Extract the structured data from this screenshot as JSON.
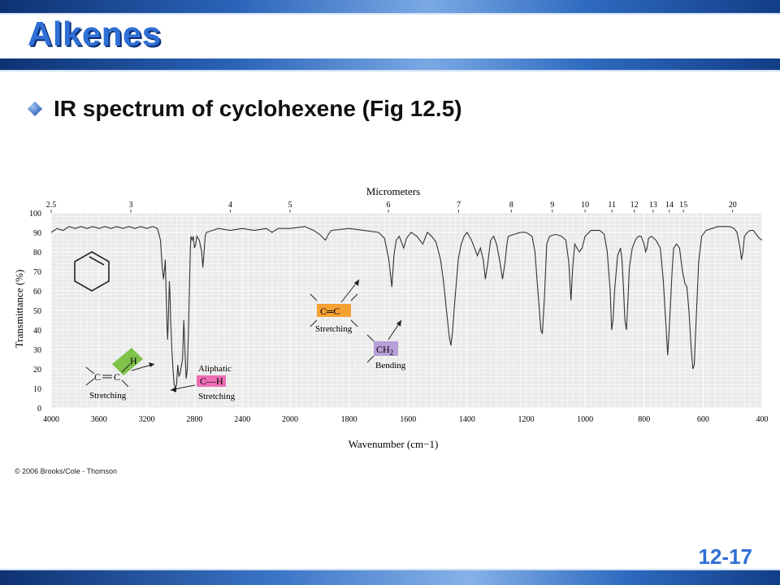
{
  "slide": {
    "title": "Alkenes",
    "bullet": "IR spectrum of cyclohexene (Fig 12.5)",
    "copyright": "© 2006 Brooks/Cole - Thomson",
    "slide_number": "12-17"
  },
  "colors": {
    "title": "#2f6fd6",
    "title_shadow": "#0b2f73",
    "band_dark": "#123d87",
    "band_light": "#6fa0e0",
    "plot_bg": "#eaeaea",
    "label_green": "#7fc24a",
    "label_orange": "#f5a033",
    "label_pink": "#ee6fb6",
    "label_purple": "#b89fd8"
  },
  "chart_data": {
    "type": "line",
    "xlabel": "Wavenumber (cm−1)",
    "ylabel": "Transmittance (%)",
    "top_axis_label": "Micrometers",
    "xlim": [
      4000,
      400
    ],
    "ylim": [
      0,
      100
    ],
    "x_ticks": [
      4000,
      3600,
      3200,
      2800,
      2400,
      2000,
      1800,
      1600,
      1400,
      1200,
      1000,
      800,
      600,
      400
    ],
    "y_ticks": [
      0,
      10,
      20,
      30,
      40,
      50,
      60,
      70,
      80,
      90,
      100
    ],
    "micrometer_ticks": [
      2.5,
      3,
      4,
      5,
      6,
      7,
      8,
      9,
      10,
      11,
      12,
      13,
      14,
      15,
      20
    ],
    "grid": true,
    "series": [
      {
        "points": [
          [
            4000,
            90
          ],
          [
            3950,
            92
          ],
          [
            3900,
            91
          ],
          [
            3850,
            93
          ],
          [
            3800,
            92
          ],
          [
            3750,
            93
          ],
          [
            3700,
            92
          ],
          [
            3650,
            93
          ],
          [
            3600,
            92
          ],
          [
            3550,
            93
          ],
          [
            3500,
            92
          ],
          [
            3450,
            93
          ],
          [
            3400,
            92
          ],
          [
            3350,
            93
          ],
          [
            3300,
            92
          ],
          [
            3250,
            93
          ],
          [
            3200,
            92
          ],
          [
            3150,
            93
          ],
          [
            3110,
            92
          ],
          [
            3085,
            86
          ],
          [
            3070,
            72
          ],
          [
            3060,
            66
          ],
          [
            3050,
            72
          ],
          [
            3045,
            76
          ],
          [
            3038,
            60
          ],
          [
            3030,
            42
          ],
          [
            3025,
            35
          ],
          [
            3020,
            44
          ],
          [
            3015,
            55
          ],
          [
            3010,
            65
          ],
          [
            3005,
            58
          ],
          [
            3000,
            45
          ],
          [
            2990,
            30
          ],
          [
            2980,
            20
          ],
          [
            2970,
            12
          ],
          [
            2960,
            10
          ],
          [
            2950,
            12
          ],
          [
            2940,
            22
          ],
          [
            2930,
            16
          ],
          [
            2920,
            18
          ],
          [
            2900,
            25
          ],
          [
            2890,
            45
          ],
          [
            2880,
            30
          ],
          [
            2870,
            15
          ],
          [
            2860,
            20
          ],
          [
            2850,
            40
          ],
          [
            2840,
            68
          ],
          [
            2835,
            82
          ],
          [
            2830,
            88
          ],
          [
            2820,
            86
          ],
          [
            2810,
            88
          ],
          [
            2800,
            82
          ],
          [
            2790,
            84
          ],
          [
            2780,
            88
          ],
          [
            2760,
            86
          ],
          [
            2740,
            80
          ],
          [
            2730,
            72
          ],
          [
            2720,
            80
          ],
          [
            2710,
            88
          ],
          [
            2700,
            90
          ],
          [
            2650,
            91
          ],
          [
            2600,
            92
          ],
          [
            2500,
            91
          ],
          [
            2400,
            92
          ],
          [
            2300,
            91
          ],
          [
            2200,
            92
          ],
          [
            2150,
            90
          ],
          [
            2100,
            92
          ],
          [
            2000,
            92
          ],
          [
            1950,
            93
          ],
          [
            1920,
            91
          ],
          [
            1900,
            89
          ],
          [
            1880,
            86
          ],
          [
            1870,
            89
          ],
          [
            1860,
            91
          ],
          [
            1800,
            92
          ],
          [
            1750,
            91
          ],
          [
            1700,
            90
          ],
          [
            1680,
            87
          ],
          [
            1665,
            76
          ],
          [
            1655,
            62
          ],
          [
            1648,
            78
          ],
          [
            1640,
            86
          ],
          [
            1630,
            88
          ],
          [
            1615,
            82
          ],
          [
            1605,
            87
          ],
          [
            1590,
            90
          ],
          [
            1570,
            88
          ],
          [
            1550,
            84
          ],
          [
            1535,
            90
          ],
          [
            1520,
            88
          ],
          [
            1505,
            85
          ],
          [
            1490,
            76
          ],
          [
            1480,
            65
          ],
          [
            1470,
            50
          ],
          [
            1460,
            36
          ],
          [
            1455,
            32
          ],
          [
            1450,
            38
          ],
          [
            1440,
            58
          ],
          [
            1430,
            76
          ],
          [
            1420,
            84
          ],
          [
            1410,
            88
          ],
          [
            1400,
            90
          ],
          [
            1385,
            86
          ],
          [
            1375,
            82
          ],
          [
            1365,
            78
          ],
          [
            1355,
            82
          ],
          [
            1345,
            76
          ],
          [
            1338,
            66
          ],
          [
            1330,
            74
          ],
          [
            1320,
            86
          ],
          [
            1310,
            88
          ],
          [
            1300,
            84
          ],
          [
            1290,
            76
          ],
          [
            1280,
            66
          ],
          [
            1272,
            74
          ],
          [
            1265,
            84
          ],
          [
            1260,
            88
          ],
          [
            1240,
            89
          ],
          [
            1220,
            90
          ],
          [
            1200,
            90
          ],
          [
            1180,
            88
          ],
          [
            1170,
            80
          ],
          [
            1160,
            60
          ],
          [
            1150,
            40
          ],
          [
            1145,
            38
          ],
          [
            1138,
            56
          ],
          [
            1130,
            84
          ],
          [
            1120,
            88
          ],
          [
            1100,
            89
          ],
          [
            1080,
            88
          ],
          [
            1065,
            86
          ],
          [
            1055,
            74
          ],
          [
            1048,
            55
          ],
          [
            1042,
            72
          ],
          [
            1035,
            84
          ],
          [
            1020,
            80
          ],
          [
            1010,
            82
          ],
          [
            1000,
            88
          ],
          [
            980,
            91
          ],
          [
            950,
            91
          ],
          [
            935,
            89
          ],
          [
            925,
            80
          ],
          [
            915,
            60
          ],
          [
            910,
            40
          ],
          [
            905,
            45
          ],
          [
            900,
            60
          ],
          [
            890,
            78
          ],
          [
            880,
            82
          ],
          [
            875,
            76
          ],
          [
            870,
            62
          ],
          [
            865,
            45
          ],
          [
            860,
            40
          ],
          [
            855,
            55
          ],
          [
            850,
            72
          ],
          [
            840,
            82
          ],
          [
            830,
            86
          ],
          [
            820,
            88
          ],
          [
            810,
            88
          ],
          [
            800,
            84
          ],
          [
            795,
            80
          ],
          [
            790,
            82
          ],
          [
            785,
            87
          ],
          [
            775,
            88
          ],
          [
            760,
            86
          ],
          [
            745,
            82
          ],
          [
            735,
            65
          ],
          [
            725,
            40
          ],
          [
            720,
            27
          ],
          [
            715,
            40
          ],
          [
            705,
            70
          ],
          [
            700,
            82
          ],
          [
            690,
            84
          ],
          [
            680,
            82
          ],
          [
            670,
            70
          ],
          [
            662,
            64
          ],
          [
            655,
            62
          ],
          [
            648,
            50
          ],
          [
            640,
            30
          ],
          [
            635,
            20
          ],
          [
            630,
            22
          ],
          [
            625,
            40
          ],
          [
            615,
            75
          ],
          [
            605,
            88
          ],
          [
            590,
            91
          ],
          [
            570,
            92
          ],
          [
            550,
            93
          ],
          [
            530,
            93
          ],
          [
            510,
            93
          ],
          [
            495,
            92
          ],
          [
            485,
            90
          ],
          [
            475,
            82
          ],
          [
            470,
            76
          ],
          [
            465,
            80
          ],
          [
            460,
            88
          ],
          [
            450,
            90
          ],
          [
            440,
            91
          ],
          [
            430,
            91
          ],
          [
            420,
            89
          ],
          [
            410,
            87
          ],
          [
            400,
            86
          ]
        ]
      }
    ],
    "annotations": [
      {
        "type": "label",
        "text": "H",
        "sub": "",
        "caption": "Stretching",
        "structure": "C═C–H"
      },
      {
        "type": "label",
        "text": "C═C",
        "caption": "Stretching"
      },
      {
        "type": "label",
        "text": "C—H",
        "caption": "Stretching",
        "heading": "Aliphatic"
      },
      {
        "type": "label",
        "text": "CH",
        "sub": "2",
        "caption": "Bending"
      }
    ]
  },
  "labels": {
    "vinyl_h": "H",
    "vinyl_c1": "C",
    "vinyl_c2": "C",
    "vinyl_caption": "Stretching",
    "cc_box": "C═C",
    "cc_caption": "Stretching",
    "aliphatic_head": "Aliphatic",
    "ch_box": "C—H",
    "ch_caption": "Stretching",
    "ch2_box": "CH",
    "ch2_sub": "2",
    "ch2_caption": "Bending"
  }
}
